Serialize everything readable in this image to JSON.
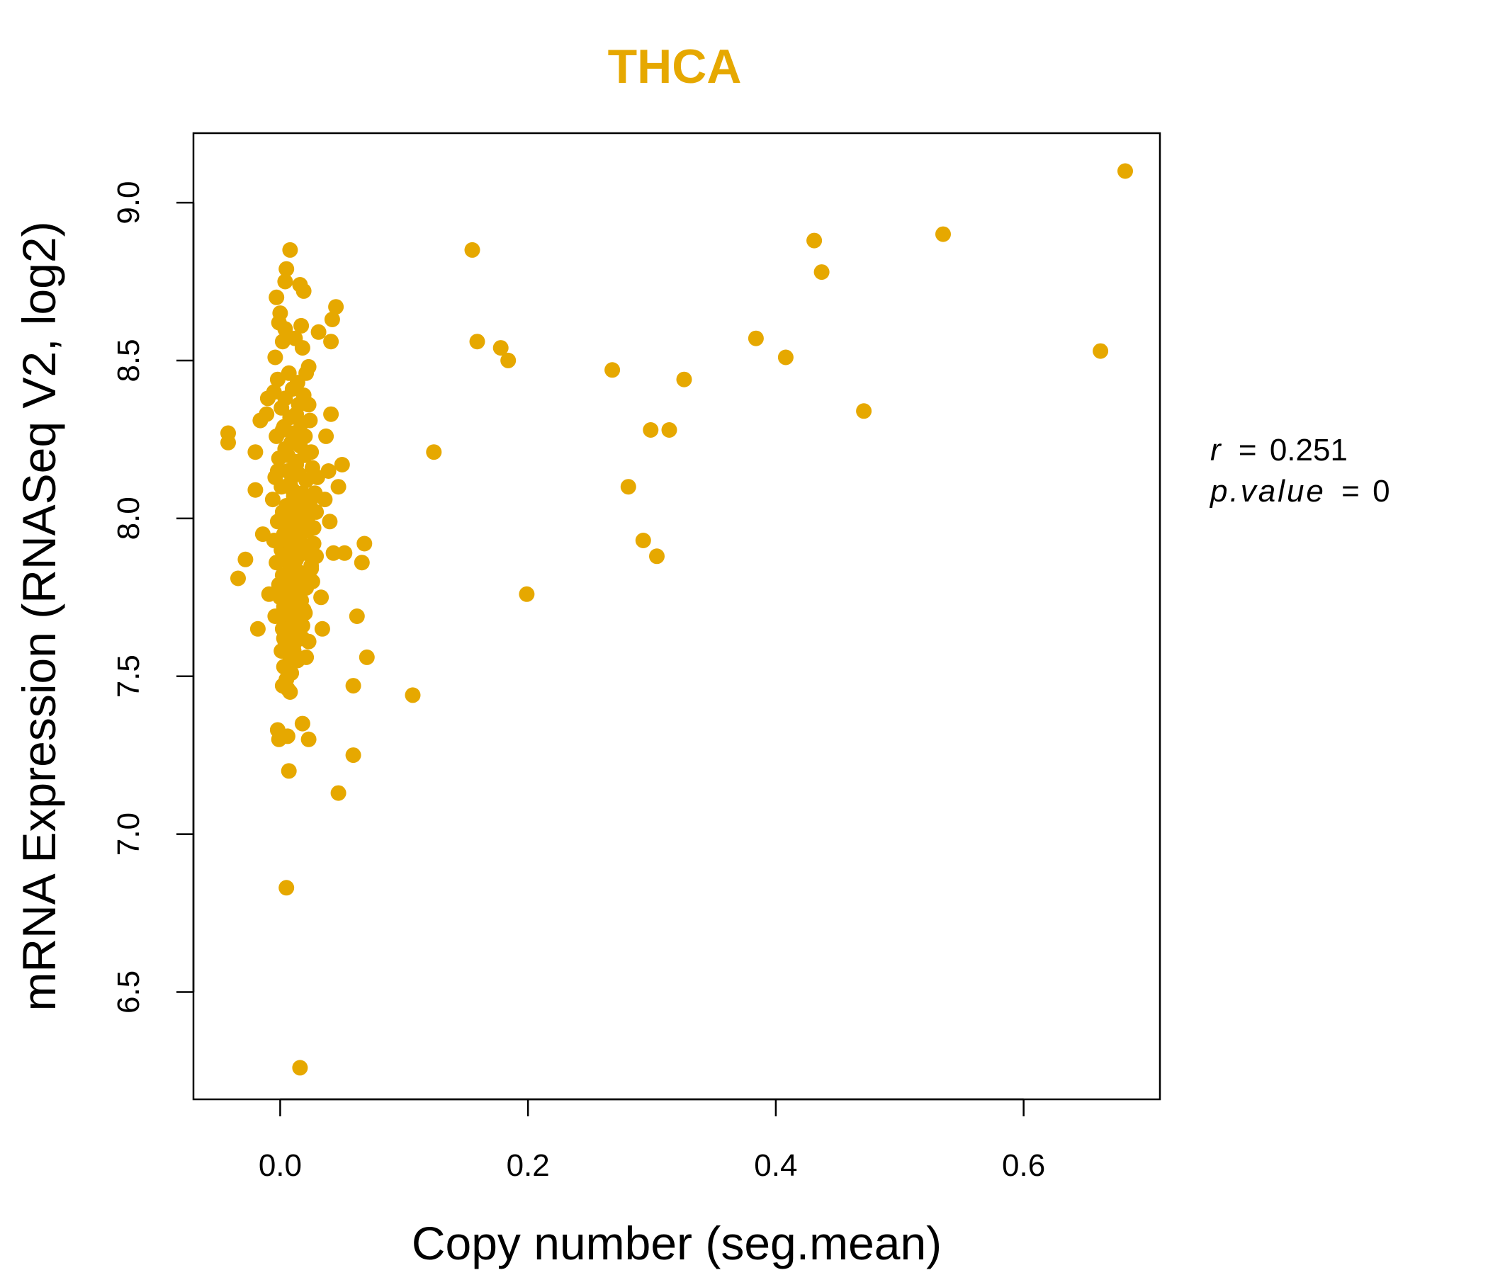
{
  "chart_data": {
    "type": "scatter",
    "title": "THCA",
    "xlabel": "Copy number (seg.mean)",
    "ylabel": "mRNA Expression (RNASeq V2, log2)",
    "xlim": [
      -0.07,
      0.71
    ],
    "ylim": [
      6.16,
      9.22
    ],
    "xticks": [
      0.0,
      0.2,
      0.4,
      0.6
    ],
    "xtick_labels": [
      "0.0",
      "0.2",
      "0.4",
      "0.6"
    ],
    "yticks": [
      6.5,
      7.0,
      7.5,
      8.0,
      8.5,
      9.0
    ],
    "ytick_labels": [
      "6.5",
      "7.0",
      "7.5",
      "8.0",
      "8.5",
      "9.0"
    ],
    "point_color": "#E6A800",
    "title_color": "#E6A800",
    "annotation": {
      "r_label": "r",
      "r_value": "0.251",
      "p_label": "p.value",
      "p_value": "0"
    },
    "points": [
      [
        0.682,
        9.1
      ],
      [
        0.535,
        8.9
      ],
      [
        0.431,
        8.88
      ],
      [
        0.437,
        8.78
      ],
      [
        0.155,
        8.85
      ],
      [
        0.662,
        8.53
      ],
      [
        0.384,
        8.57
      ],
      [
        0.408,
        8.51
      ],
      [
        0.159,
        8.56
      ],
      [
        0.178,
        8.54
      ],
      [
        0.184,
        8.5
      ],
      [
        0.268,
        8.47
      ],
      [
        0.326,
        8.44
      ],
      [
        0.471,
        8.34
      ],
      [
        0.314,
        8.28
      ],
      [
        0.299,
        8.28
      ],
      [
        0.124,
        8.21
      ],
      [
        0.281,
        8.1
      ],
      [
        0.293,
        7.93
      ],
      [
        0.304,
        7.88
      ],
      [
        0.199,
        7.76
      ],
      [
        0.107,
        7.44
      ],
      [
        0.016,
        6.26
      ],
      [
        0.005,
        6.83
      ],
      [
        0.047,
        7.13
      ],
      [
        0.059,
        7.25
      ],
      [
        0.007,
        7.2
      ],
      [
        0.018,
        7.35
      ],
      [
        0.023,
        7.3
      ],
      [
        0.006,
        7.31
      ],
      [
        -0.002,
        7.33
      ],
      [
        -0.001,
        7.3
      ],
      [
        0.059,
        7.47
      ],
      [
        0.07,
        7.56
      ],
      [
        0.062,
        7.69
      ],
      [
        0.034,
        7.65
      ],
      [
        0.066,
        7.86
      ],
      [
        0.068,
        7.92
      ],
      [
        0.052,
        7.89
      ],
      [
        0.043,
        7.89
      ],
      [
        0.04,
        7.99
      ],
      [
        0.036,
        8.06
      ],
      [
        0.047,
        8.1
      ],
      [
        0.05,
        8.17
      ],
      [
        0.039,
        8.15
      ],
      [
        0.037,
        8.26
      ],
      [
        0.041,
        8.33
      ],
      [
        0.041,
        8.56
      ],
      [
        0.042,
        8.63
      ],
      [
        0.045,
        8.67
      ],
      [
        0.031,
        8.59
      ],
      [
        0.023,
        8.36
      ],
      [
        0.025,
        8.21
      ],
      [
        0.027,
        7.97
      ],
      [
        0.033,
        7.75
      ],
      [
        0.023,
        7.61
      ],
      [
        0.021,
        7.56
      ],
      [
        -0.042,
        8.27
      ],
      [
        -0.042,
        8.24
      ],
      [
        -0.028,
        7.87
      ],
      [
        -0.034,
        7.81
      ],
      [
        -0.018,
        7.65
      ],
      [
        -0.02,
        8.21
      ],
      [
        -0.02,
        8.09
      ],
      [
        -0.016,
        8.31
      ],
      [
        -0.014,
        7.95
      ],
      [
        -0.009,
        7.76
      ],
      [
        0.016,
        8.74
      ],
      [
        0.019,
        8.72
      ],
      [
        0.008,
        8.85
      ],
      [
        0.005,
        8.79
      ],
      [
        0.004,
        8.75
      ],
      [
        -0.003,
        8.7
      ],
      [
        0.0,
        8.65
      ],
      [
        -0.001,
        8.62
      ],
      [
        0.004,
        8.6
      ],
      [
        0.017,
        8.61
      ],
      [
        0.012,
        8.57
      ],
      [
        0.002,
        8.56
      ],
      [
        0.018,
        8.54
      ],
      [
        -0.004,
        8.51
      ],
      [
        0.023,
        8.48
      ],
      [
        0.021,
        8.46
      ],
      [
        0.007,
        8.46
      ],
      [
        -0.002,
        8.44
      ],
      [
        0.01,
        8.41
      ],
      [
        0.014,
        8.43
      ],
      [
        -0.005,
        8.4
      ],
      [
        0.004,
        8.38
      ],
      [
        0.019,
        8.39
      ],
      [
        -0.01,
        8.38
      ],
      [
        0.001,
        8.35
      ],
      [
        0.013,
        8.33
      ],
      [
        0.008,
        8.32
      ],
      [
        -0.011,
        8.33
      ],
      [
        0.017,
        8.3
      ],
      [
        0.002,
        8.28
      ],
      [
        0.011,
        8.27
      ],
      [
        -0.003,
        8.26
      ],
      [
        0.009,
        8.24
      ],
      [
        0.016,
        8.23
      ],
      [
        0.004,
        8.22
      ],
      [
        0.02,
        8.2
      ],
      [
        -0.001,
        8.19
      ],
      [
        0.012,
        8.18
      ],
      [
        0.026,
        8.16
      ],
      [
        0.006,
        8.15
      ],
      [
        0.015,
        8.14
      ],
      [
        -0.004,
        8.13
      ],
      [
        0.021,
        8.12
      ],
      [
        0.008,
        8.11
      ],
      [
        0.001,
        8.1
      ],
      [
        0.018,
        8.08
      ],
      [
        0.011,
        8.07
      ],
      [
        -0.006,
        8.06
      ],
      [
        0.024,
        8.05
      ],
      [
        0.005,
        8.04
      ],
      [
        0.014,
        8.03
      ],
      [
        0.002,
        8.02
      ],
      [
        0.019,
        8.01
      ],
      [
        0.009,
        8.0
      ],
      [
        -0.002,
        7.99
      ],
      [
        0.016,
        7.98
      ],
      [
        0.007,
        7.97
      ],
      [
        0.022,
        7.96
      ],
      [
        0.003,
        7.95
      ],
      [
        0.012,
        7.94
      ],
      [
        -0.005,
        7.93
      ],
      [
        0.017,
        7.92
      ],
      [
        0.01,
        7.91
      ],
      [
        0.001,
        7.9
      ],
      [
        0.02,
        7.89
      ],
      [
        0.006,
        7.88
      ],
      [
        0.013,
        7.87
      ],
      [
        -0.003,
        7.86
      ],
      [
        0.025,
        7.85
      ],
      [
        0.008,
        7.84
      ],
      [
        0.015,
        7.83
      ],
      [
        0.002,
        7.82
      ],
      [
        0.018,
        7.81
      ],
      [
        0.011,
        7.8
      ],
      [
        -0.001,
        7.79
      ],
      [
        0.021,
        7.78
      ],
      [
        0.005,
        7.77
      ],
      [
        0.014,
        7.76
      ],
      [
        0.0,
        7.75
      ],
      [
        0.017,
        7.74
      ],
      [
        0.009,
        7.73
      ],
      [
        0.003,
        7.72
      ],
      [
        0.019,
        7.71
      ],
      [
        0.012,
        7.7
      ],
      [
        -0.004,
        7.69
      ],
      [
        0.016,
        7.68
      ],
      [
        0.006,
        7.67
      ],
      [
        0.01,
        7.66
      ],
      [
        0.002,
        7.65
      ],
      [
        0.013,
        7.64
      ],
      [
        0.007,
        7.63
      ],
      [
        0.018,
        7.62
      ],
      [
        0.004,
        7.61
      ],
      [
        0.011,
        7.6
      ],
      [
        0.001,
        7.58
      ],
      [
        0.008,
        7.56
      ],
      [
        0.014,
        7.55
      ],
      [
        0.003,
        7.53
      ],
      [
        0.009,
        7.51
      ],
      [
        0.005,
        7.49
      ],
      [
        0.002,
        7.47
      ],
      [
        0.006,
        7.46
      ],
      [
        0.008,
        7.45
      ],
      [
        0.015,
        8.36
      ],
      [
        0.003,
        8.29
      ],
      [
        0.02,
        8.26
      ],
      [
        0.006,
        8.2
      ],
      [
        0.013,
        8.17
      ],
      [
        -0.002,
        8.15
      ],
      [
        0.01,
        8.09
      ],
      [
        0.017,
        8.05
      ],
      [
        0.004,
        8.0
      ],
      [
        0.012,
        7.97
      ],
      [
        0.0,
        7.93
      ],
      [
        0.015,
        7.9
      ],
      [
        0.007,
        7.86
      ],
      [
        0.022,
        7.82
      ],
      [
        0.001,
        7.78
      ],
      [
        0.014,
        7.74
      ],
      [
        0.006,
        7.7
      ],
      [
        0.018,
        7.66
      ],
      [
        0.003,
        7.62
      ],
      [
        0.011,
        7.58
      ],
      [
        0.028,
        8.08
      ],
      [
        0.029,
        7.88
      ],
      [
        0.026,
        7.8
      ],
      [
        0.027,
        7.92
      ],
      [
        0.03,
        8.13
      ],
      [
        0.024,
        8.31
      ],
      [
        0.022,
        8.0
      ],
      [
        0.02,
        7.7
      ],
      [
        0.025,
        7.84
      ],
      [
        0.029,
        8.02
      ]
    ]
  }
}
